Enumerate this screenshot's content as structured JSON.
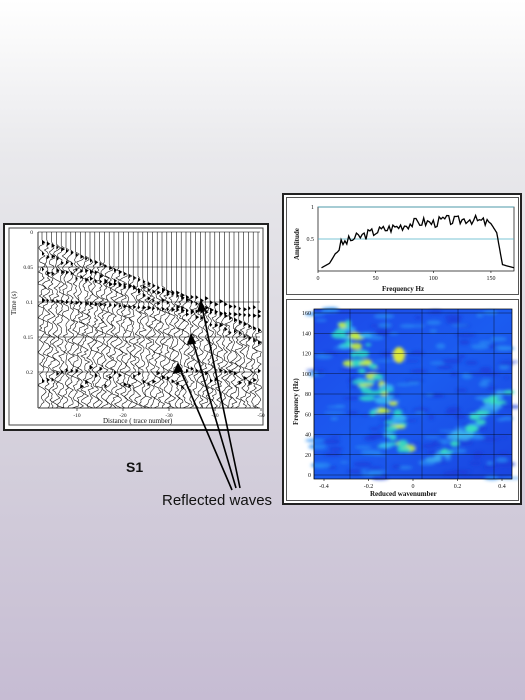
{
  "seismogram": {
    "y_label": "Time (s)",
    "x_label": "Distance ( trace number)",
    "y_ticks": [
      "0",
      "0.05",
      "0.1",
      "0.15",
      "0.2"
    ],
    "x_ticks": [
      "-10",
      "-20",
      "-30",
      "-40",
      "-50"
    ]
  },
  "spectrum": {
    "y_label": "Amplitude",
    "x_label": "Frequency Hz",
    "y_ticks": [
      "1",
      "0.5"
    ],
    "x_ticks": [
      "0",
      "50",
      "100",
      "150"
    ]
  },
  "fk": {
    "y_label": "Frequency (Hz)",
    "x_label": "Reduced wavenumber",
    "y_ticks": [
      "160",
      "140",
      "120",
      "100",
      "80",
      "60",
      "40",
      "20",
      "0"
    ],
    "x_ticks": [
      "-0.4",
      "-0.2",
      "0",
      "0.2",
      "0.4"
    ]
  },
  "annotations": {
    "s1": "S1",
    "reflected": "Reflected waves"
  },
  "chart_data": [
    {
      "type": "line",
      "x": [
        3,
        10,
        20,
        30,
        40,
        50,
        60,
        70,
        80,
        90,
        100,
        110,
        120,
        130,
        140,
        150,
        155,
        160,
        170
      ],
      "y": [
        0.05,
        0.12,
        0.42,
        0.5,
        0.56,
        0.62,
        0.66,
        0.7,
        0.74,
        0.77,
        0.75,
        0.8,
        0.78,
        0.82,
        0.78,
        0.74,
        0.6,
        0.1,
        0.05
      ],
      "xlim": [
        0,
        170
      ],
      "ylim": [
        0,
        1
      ],
      "xlabel": "Frequency Hz",
      "ylabel": "Amplitude"
    }
  ]
}
